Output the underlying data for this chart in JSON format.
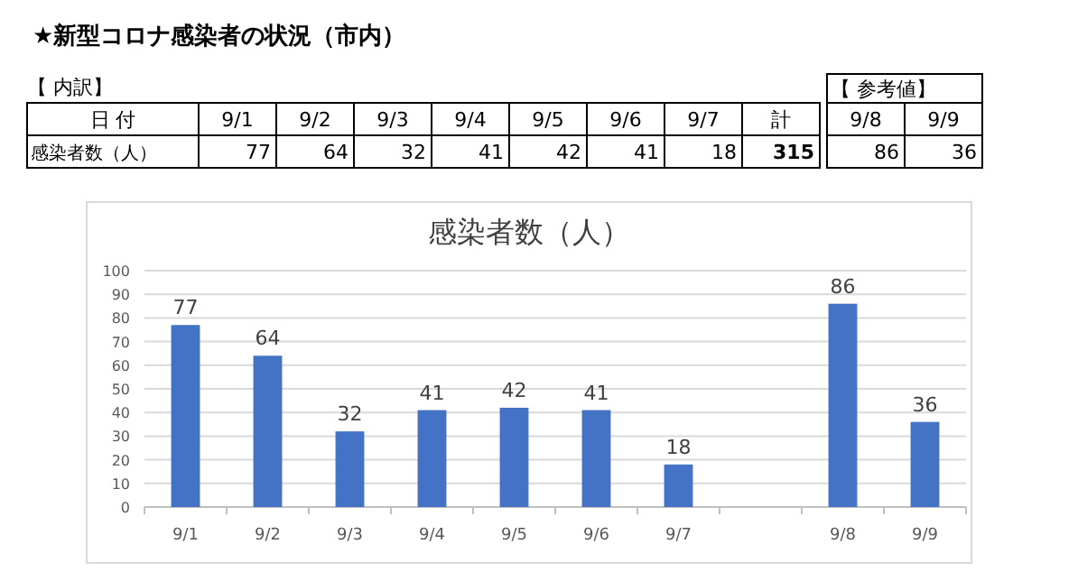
{
  "chart_data": [
    {
      "type": "other",
      "title": "★新型コロナ感染者の状況（市内）",
      "categories": [
        "9/1",
        "9/2",
        "9/3",
        "9/4",
        "9/5",
        "9/6",
        "9/7",
        null,
        "9/8",
        "9/9"
      ],
      "values": [
        77,
        64,
        32,
        41,
        42,
        41,
        18,
        null,
        86,
        36
      ],
      "data_labels": true,
      "annotations": [
        "【 内訳】",
        "【 参考値】",
        "日 付",
        "感染者数（人）",
        "計",
        "315"
      ]
    },
    {
      "type": "bar",
      "title": "感染者数（人）",
      "categories": [
        "9/1",
        "9/2",
        "9/3",
        "9/4",
        "9/5",
        "9/6",
        "9/7",
        null,
        "9/8",
        "9/9"
      ],
      "values": [
        77,
        64,
        32,
        41,
        42,
        41,
        18,
        null,
        86,
        36
      ],
      "color": "#4472c4",
      "ylim": [
        0,
        100
      ],
      "yticks": [
        0,
        10,
        20,
        30,
        40,
        50,
        60,
        70,
        80,
        90,
        100
      ],
      "grid": "y",
      "data_labels": true
    }
  ]
}
